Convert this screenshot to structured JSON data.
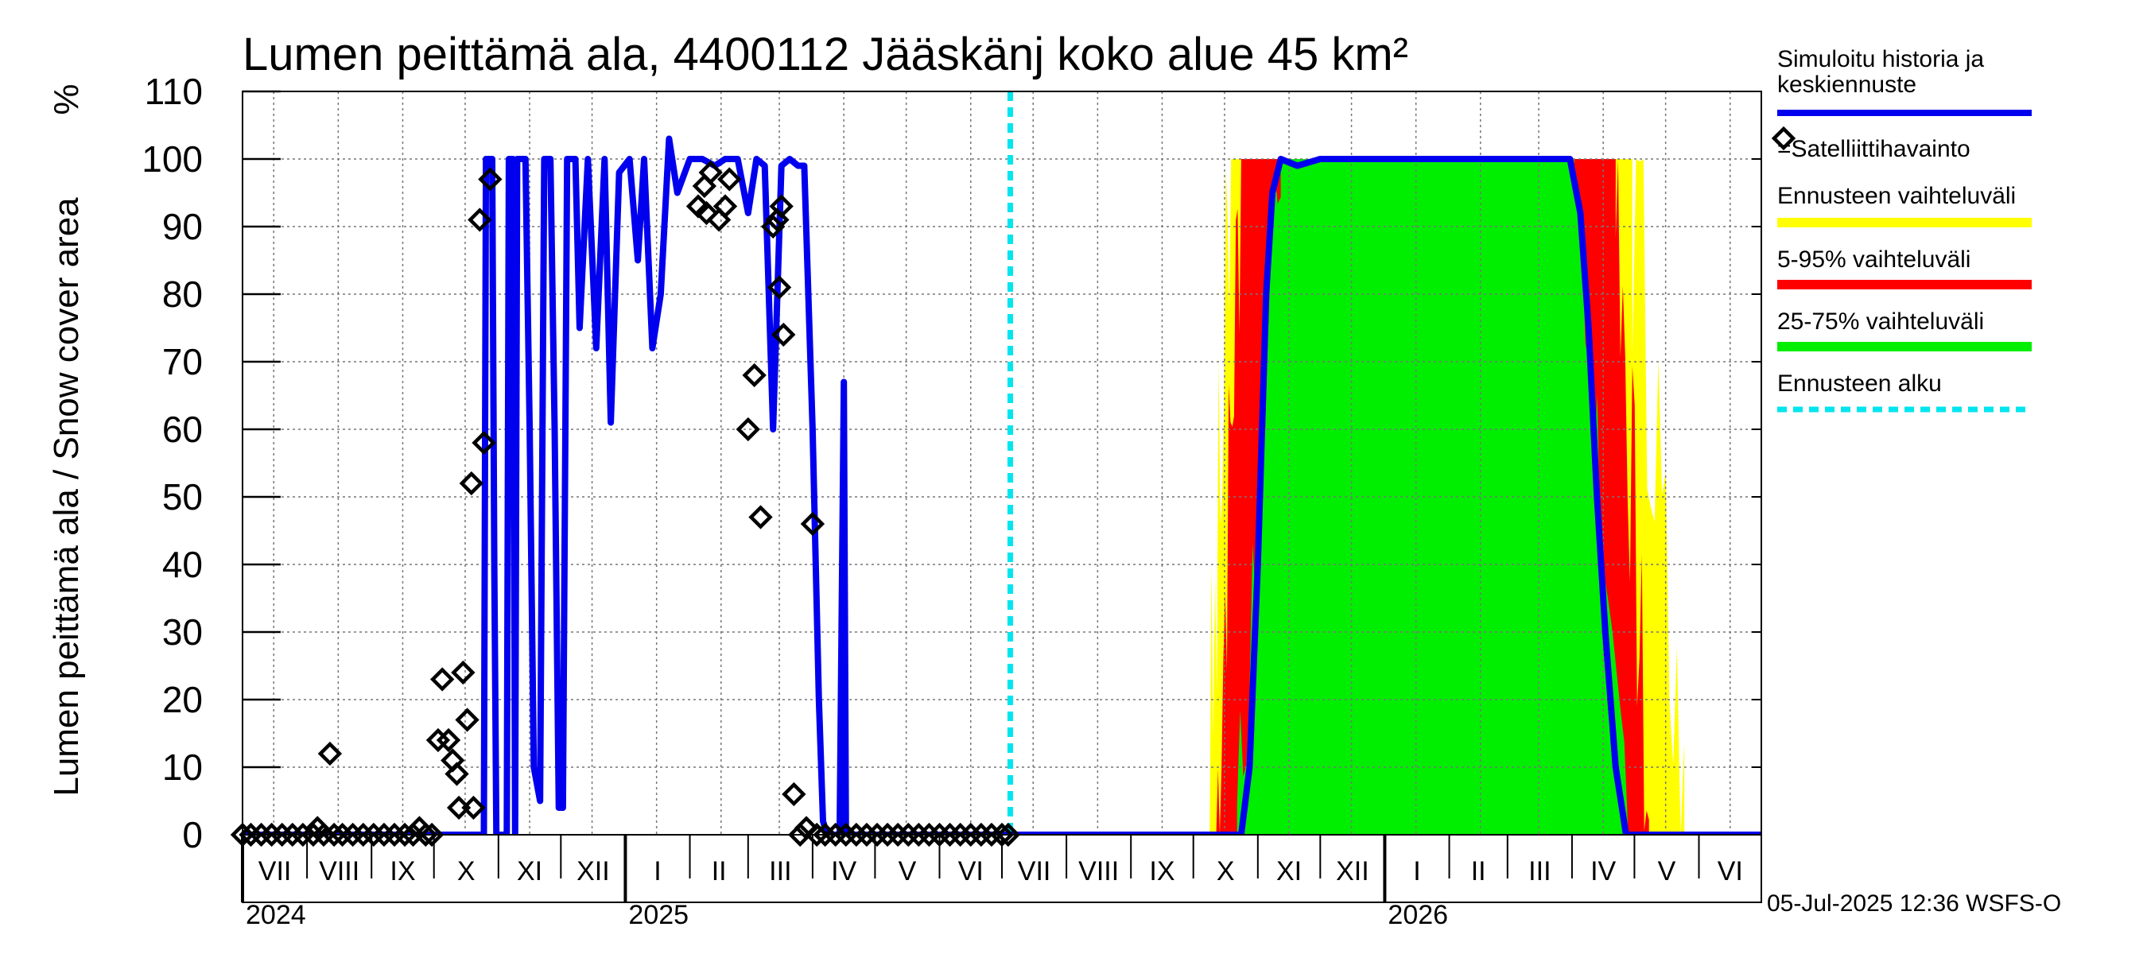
{
  "chart_data": {
    "type": "area",
    "title": "Lumen peittämä ala, 4400112 Jääskänj koko alue 45 km²",
    "ylabel": "Lumen peittämä ala / Snow cover area",
    "yunit": "%",
    "ylim": [
      0,
      110
    ],
    "yticks": [
      0,
      10,
      20,
      30,
      40,
      50,
      60,
      70,
      80,
      90,
      100,
      110
    ],
    "xlim": [
      "2024-07-01",
      "2026-07-01"
    ],
    "forecast_start": "2025-07-05",
    "months": [
      {
        "label": "VII",
        "start": "2024-07-01"
      },
      {
        "label": "VIII",
        "start": "2024-08-01"
      },
      {
        "label": "IX",
        "start": "2024-09-01"
      },
      {
        "label": "X",
        "start": "2024-10-01"
      },
      {
        "label": "XI",
        "start": "2024-11-01"
      },
      {
        "label": "XII",
        "start": "2024-12-01"
      },
      {
        "label": "I",
        "start": "2025-01-01"
      },
      {
        "label": "II",
        "start": "2025-02-01"
      },
      {
        "label": "III",
        "start": "2025-03-01"
      },
      {
        "label": "IV",
        "start": "2025-04-01"
      },
      {
        "label": "V",
        "start": "2025-05-01"
      },
      {
        "label": "VI",
        "start": "2025-06-01"
      },
      {
        "label": "VII",
        "start": "2025-07-01"
      },
      {
        "label": "VIII",
        "start": "2025-08-01"
      },
      {
        "label": "IX",
        "start": "2025-09-01"
      },
      {
        "label": "X",
        "start": "2025-10-01"
      },
      {
        "label": "XI",
        "start": "2025-11-01"
      },
      {
        "label": "XII",
        "start": "2025-12-01"
      },
      {
        "label": "I",
        "start": "2026-01-01"
      },
      {
        "label": "II",
        "start": "2026-02-01"
      },
      {
        "label": "III",
        "start": "2026-03-01"
      },
      {
        "label": "IV",
        "start": "2026-04-01"
      },
      {
        "label": "V",
        "start": "2026-05-01"
      },
      {
        "label": "VI",
        "start": "2026-06-01"
      }
    ],
    "years": [
      {
        "label": "2024",
        "start": "2024-07-01"
      },
      {
        "label": "2025",
        "start": "2025-01-01"
      },
      {
        "label": "2026",
        "start": "2026-01-01"
      }
    ],
    "series": [
      {
        "name": "Simuloitu historia ja keskiennuste",
        "color": "#0000ee",
        "points": [
          [
            "2024-07-01",
            0
          ],
          [
            "2024-10-25",
            0
          ],
          [
            "2024-10-26",
            100
          ],
          [
            "2024-10-29",
            100
          ],
          [
            "2024-10-30",
            40
          ],
          [
            "2024-10-31",
            0
          ],
          [
            "2024-11-05",
            0
          ],
          [
            "2024-11-06",
            100
          ],
          [
            "2024-11-08",
            100
          ],
          [
            "2024-11-09",
            0
          ],
          [
            "2024-11-10",
            100
          ],
          [
            "2024-11-14",
            100
          ],
          [
            "2024-11-16",
            60
          ],
          [
            "2024-11-18",
            10
          ],
          [
            "2024-11-21",
            5
          ],
          [
            "2024-11-23",
            100
          ],
          [
            "2024-11-26",
            100
          ],
          [
            "2024-11-28",
            60
          ],
          [
            "2024-11-30",
            4
          ],
          [
            "2024-12-02",
            4
          ],
          [
            "2024-12-04",
            100
          ],
          [
            "2024-12-08",
            100
          ],
          [
            "2024-12-10",
            75
          ],
          [
            "2024-12-14",
            100
          ],
          [
            "2024-12-18",
            72
          ],
          [
            "2024-12-22",
            100
          ],
          [
            "2024-12-25",
            61
          ],
          [
            "2024-12-29",
            98
          ],
          [
            "2025-01-03",
            100
          ],
          [
            "2025-01-07",
            85
          ],
          [
            "2025-01-10",
            100
          ],
          [
            "2025-01-14",
            72
          ],
          [
            "2025-01-18",
            80
          ],
          [
            "2025-01-22",
            103
          ],
          [
            "2025-01-26",
            95
          ],
          [
            "2025-02-01",
            100
          ],
          [
            "2025-02-07",
            100
          ],
          [
            "2025-02-13",
            99
          ],
          [
            "2025-02-18",
            100
          ],
          [
            "2025-02-24",
            100
          ],
          [
            "2025-03-01",
            92
          ],
          [
            "2025-03-05",
            100
          ],
          [
            "2025-03-09",
            99
          ],
          [
            "2025-03-13",
            60
          ],
          [
            "2025-03-17",
            99
          ],
          [
            "2025-03-21",
            100
          ],
          [
            "2025-03-25",
            99
          ],
          [
            "2025-03-28",
            99
          ],
          [
            "2025-04-01",
            60
          ],
          [
            "2025-04-04",
            20
          ],
          [
            "2025-04-06",
            2
          ],
          [
            "2025-04-08",
            0
          ],
          [
            "2025-04-14",
            0
          ],
          [
            "2025-04-16",
            67
          ],
          [
            "2025-04-17",
            0
          ],
          [
            "2025-10-24",
            0
          ],
          [
            "2025-10-28",
            10
          ],
          [
            "2025-11-01",
            40
          ],
          [
            "2025-11-05",
            80
          ],
          [
            "2025-11-08",
            95
          ],
          [
            "2025-11-12",
            100
          ],
          [
            "2025-11-20",
            99
          ],
          [
            "2025-12-01",
            100
          ],
          [
            "2026-03-31",
            100
          ],
          [
            "2026-04-05",
            92
          ],
          [
            "2026-04-09",
            75
          ],
          [
            "2026-04-13",
            50
          ],
          [
            "2026-04-17",
            30
          ],
          [
            "2026-04-22",
            10
          ],
          [
            "2026-04-27",
            0
          ],
          [
            "2026-07-01",
            0
          ]
        ]
      },
      {
        "name": "=Satelliittihavainto",
        "color": "#000000",
        "points": [
          [
            "2024-07-01",
            0
          ],
          [
            "2024-07-05",
            0
          ],
          [
            "2024-07-10",
            0
          ],
          [
            "2024-07-15",
            0
          ],
          [
            "2024-07-20",
            0
          ],
          [
            "2024-07-25",
            0
          ],
          [
            "2024-07-30",
            0
          ],
          [
            "2024-08-04",
            0
          ],
          [
            "2024-08-06",
            1
          ],
          [
            "2024-08-09",
            0
          ],
          [
            "2024-08-12",
            12
          ],
          [
            "2024-08-14",
            0
          ],
          [
            "2024-08-18",
            0
          ],
          [
            "2024-08-23",
            0
          ],
          [
            "2024-08-28",
            0
          ],
          [
            "2024-09-02",
            0
          ],
          [
            "2024-09-07",
            0
          ],
          [
            "2024-09-12",
            0
          ],
          [
            "2024-09-17",
            0
          ],
          [
            "2024-09-21",
            0
          ],
          [
            "2024-09-24",
            1
          ],
          [
            "2024-09-27",
            0
          ],
          [
            "2024-09-30",
            0
          ],
          [
            "2024-10-03",
            14
          ],
          [
            "2024-10-05",
            23
          ],
          [
            "2024-10-08",
            14
          ],
          [
            "2024-10-10",
            11
          ],
          [
            "2024-10-12",
            9
          ],
          [
            "2024-10-13",
            4
          ],
          [
            "2024-10-15",
            24
          ],
          [
            "2024-10-17",
            17
          ],
          [
            "2024-10-19",
            52
          ],
          [
            "2024-10-20",
            4
          ],
          [
            "2024-10-23",
            91
          ],
          [
            "2024-10-25",
            58
          ],
          [
            "2024-10-28",
            97
          ],
          [
            "2025-02-05",
            93
          ],
          [
            "2025-02-08",
            96
          ],
          [
            "2025-02-09",
            92
          ],
          [
            "2025-02-11",
            98
          ],
          [
            "2025-02-15",
            91
          ],
          [
            "2025-02-18",
            93
          ],
          [
            "2025-02-20",
            97
          ],
          [
            "2025-03-01",
            60
          ],
          [
            "2025-03-04",
            68
          ],
          [
            "2025-03-07",
            47
          ],
          [
            "2025-03-13",
            90
          ],
          [
            "2025-03-15",
            91
          ],
          [
            "2025-03-16",
            81
          ],
          [
            "2025-03-17",
            93
          ],
          [
            "2025-03-18",
            74
          ],
          [
            "2025-03-23",
            6
          ],
          [
            "2025-03-26",
            0
          ],
          [
            "2025-03-29",
            1
          ],
          [
            "2025-04-01",
            46
          ],
          [
            "2025-04-03",
            0
          ],
          [
            "2025-04-07",
            0
          ],
          [
            "2025-04-12",
            0
          ],
          [
            "2025-04-17",
            0
          ],
          [
            "2025-04-22",
            0
          ],
          [
            "2025-04-27",
            0
          ],
          [
            "2025-05-02",
            0
          ],
          [
            "2025-05-07",
            0
          ],
          [
            "2025-05-12",
            0
          ],
          [
            "2025-05-17",
            0
          ],
          [
            "2025-05-22",
            0
          ],
          [
            "2025-05-27",
            0
          ],
          [
            "2025-06-01",
            0
          ],
          [
            "2025-06-06",
            0
          ],
          [
            "2025-06-11",
            0
          ],
          [
            "2025-06-16",
            0
          ],
          [
            "2025-06-21",
            0
          ],
          [
            "2025-06-26",
            0
          ],
          [
            "2025-07-01",
            0
          ],
          [
            "2025-07-04",
            0
          ]
        ]
      },
      {
        "name": "Ennusteen vaihteluväli",
        "color": "#ffff00",
        "band": {
          "start": "2025-10-08",
          "rise_end": "2025-10-20",
          "fall_start": "2026-04-30",
          "end": "2026-05-25"
        }
      },
      {
        "name": "5-95% vaihteluväli",
        "color": "#ff0000",
        "band": {
          "start": "2025-10-12",
          "rise_end": "2025-10-24",
          "fall_start": "2026-04-22",
          "end": "2026-05-08"
        }
      },
      {
        "name": "25-75% vaihteluväli",
        "color": "#00ee00",
        "band": {
          "start": "2025-10-22",
          "rise_end": "2025-11-12",
          "fall_start": "2026-04-02",
          "end": "2026-04-28"
        }
      },
      {
        "name": "Ennusteen alku",
        "color": "#00e5ee"
      }
    ],
    "grid": true,
    "legend": "right"
  },
  "footer": "05-Jul-2025 12:36 WSFS-O"
}
